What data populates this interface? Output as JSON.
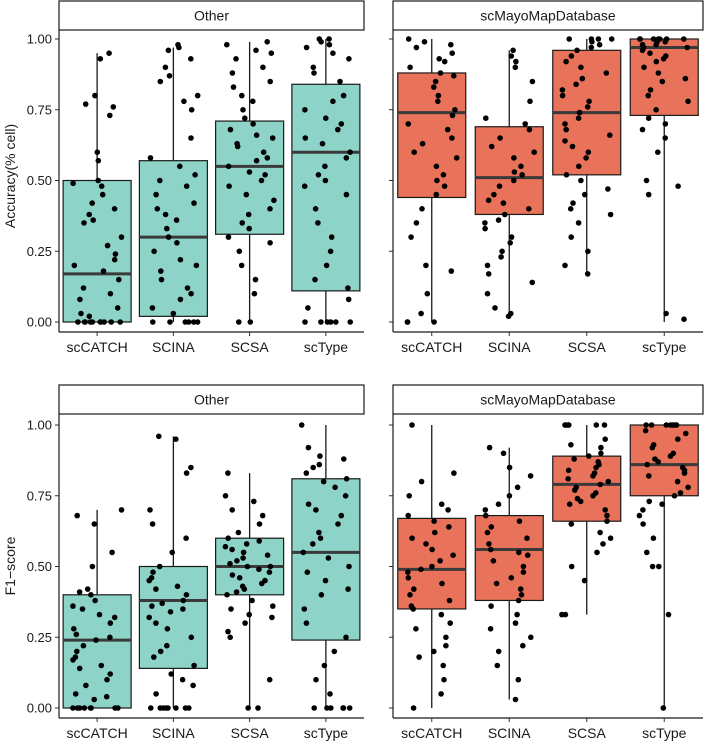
{
  "chart_data": [
    {
      "type": "box",
      "ylabel": "Accuracy(% cell)",
      "ylim": [
        0,
        1
      ],
      "yticks": [
        0,
        0.25,
        0.5,
        0.75,
        1
      ],
      "ytick_labels": [
        "0.00",
        "0.25",
        "0.50",
        "0.75",
        "1.00"
      ],
      "categories": [
        "scCATCH",
        "SCINA",
        "SCSA",
        "scType"
      ],
      "panels": [
        {
          "title": "Other",
          "fill": "#8dd3c7",
          "boxes": [
            {
              "category": "scCATCH",
              "min": 0.0,
              "q1": 0.0,
              "median": 0.17,
              "q3": 0.5,
              "max": 0.95,
              "points": [
                0.95,
                0.93,
                0.8,
                0.77,
                0.76,
                0.73,
                0.6,
                0.57,
                0.5,
                0.49,
                0.48,
                0.45,
                0.42,
                0.4,
                0.38,
                0.36,
                0.35,
                0.3,
                0.27,
                0.24,
                0.22,
                0.2,
                0.18,
                0.15,
                0.12,
                0.1,
                0.08,
                0.05,
                0.03,
                0.02,
                0.0,
                0.0,
                0.0,
                0.0,
                0.0,
                0.0,
                0.0,
                0.0,
                0.0,
                0.0
              ]
            },
            {
              "category": "SCINA",
              "min": 0.0,
              "q1": 0.02,
              "median": 0.3,
              "q3": 0.57,
              "max": 0.97,
              "points": [
                0.98,
                0.97,
                0.96,
                0.93,
                0.9,
                0.87,
                0.85,
                0.8,
                0.78,
                0.75,
                0.65,
                0.58,
                0.55,
                0.52,
                0.5,
                0.48,
                0.45,
                0.42,
                0.4,
                0.38,
                0.36,
                0.33,
                0.3,
                0.28,
                0.25,
                0.22,
                0.2,
                0.18,
                0.15,
                0.12,
                0.1,
                0.08,
                0.05,
                0.03,
                0.0,
                0.0,
                0.0,
                0.0,
                0.0,
                0.0
              ]
            },
            {
              "category": "SCSA",
              "min": 0.0,
              "q1": 0.31,
              "median": 0.55,
              "q3": 0.71,
              "max": 0.99,
              "points": [
                0.99,
                0.98,
                0.96,
                0.95,
                0.93,
                0.9,
                0.88,
                0.85,
                0.83,
                0.8,
                0.78,
                0.75,
                0.72,
                0.7,
                0.68,
                0.66,
                0.65,
                0.63,
                0.62,
                0.6,
                0.58,
                0.57,
                0.55,
                0.53,
                0.52,
                0.5,
                0.48,
                0.45,
                0.43,
                0.4,
                0.38,
                0.35,
                0.33,
                0.3,
                0.28,
                0.25,
                0.2,
                0.15,
                0.1,
                0.0,
                0.0
              ]
            },
            {
              "category": "scType",
              "min": 0.0,
              "q1": 0.11,
              "median": 0.6,
              "q3": 0.84,
              "max": 1.0,
              "points": [
                1.0,
                1.0,
                0.99,
                0.98,
                0.97,
                0.95,
                0.93,
                0.9,
                0.88,
                0.85,
                0.8,
                0.78,
                0.75,
                0.72,
                0.7,
                0.68,
                0.65,
                0.63,
                0.6,
                0.58,
                0.55,
                0.52,
                0.5,
                0.48,
                0.45,
                0.4,
                0.35,
                0.3,
                0.25,
                0.2,
                0.15,
                0.12,
                0.08,
                0.05,
                0.0,
                0.0,
                0.0,
                0.0,
                0.0,
                0.0
              ]
            }
          ]
        },
        {
          "title": "scMayoMapDatabase",
          "fill": "#e8735a",
          "boxes": [
            {
              "category": "scCATCH",
              "min": 0.0,
              "q1": 0.44,
              "median": 0.74,
              "q3": 0.88,
              "max": 1.0,
              "points": [
                1.0,
                0.99,
                0.98,
                0.97,
                0.95,
                0.93,
                0.92,
                0.9,
                0.88,
                0.87,
                0.85,
                0.83,
                0.8,
                0.78,
                0.75,
                0.73,
                0.7,
                0.68,
                0.65,
                0.63,
                0.6,
                0.58,
                0.55,
                0.52,
                0.5,
                0.48,
                0.45,
                0.4,
                0.35,
                0.3,
                0.2,
                0.18,
                0.1,
                0.03,
                0.0,
                0.0,
                0.0
              ]
            },
            {
              "category": "SCINA",
              "min": 0.03,
              "q1": 0.38,
              "median": 0.51,
              "q3": 0.69,
              "max": 0.96,
              "points": [
                0.96,
                0.94,
                0.92,
                0.9,
                0.85,
                0.78,
                0.72,
                0.7,
                0.68,
                0.65,
                0.62,
                0.6,
                0.58,
                0.55,
                0.53,
                0.52,
                0.5,
                0.48,
                0.45,
                0.43,
                0.42,
                0.4,
                0.38,
                0.36,
                0.35,
                0.33,
                0.3,
                0.28,
                0.25,
                0.23,
                0.2,
                0.17,
                0.14,
                0.1,
                0.05,
                0.03,
                0.02
              ]
            },
            {
              "category": "SCSA",
              "min": 0.17,
              "q1": 0.52,
              "median": 0.74,
              "q3": 0.96,
              "max": 1.0,
              "points": [
                1.0,
                1.0,
                1.0,
                1.0,
                0.99,
                0.98,
                0.97,
                0.96,
                0.94,
                0.92,
                0.9,
                0.88,
                0.86,
                0.84,
                0.82,
                0.8,
                0.78,
                0.76,
                0.74,
                0.72,
                0.7,
                0.68,
                0.66,
                0.64,
                0.62,
                0.6,
                0.58,
                0.55,
                0.52,
                0.5,
                0.47,
                0.45,
                0.42,
                0.4,
                0.38,
                0.35,
                0.3,
                0.25,
                0.2,
                0.17
              ]
            },
            {
              "category": "scType",
              "min": 0.0,
              "q1": 0.73,
              "median": 0.97,
              "q3": 1.0,
              "max": 1.0,
              "points": [
                1.0,
                1.0,
                1.0,
                1.0,
                1.0,
                1.0,
                1.0,
                0.99,
                0.99,
                0.98,
                0.98,
                0.97,
                0.97,
                0.96,
                0.95,
                0.94,
                0.93,
                0.92,
                0.9,
                0.88,
                0.86,
                0.85,
                0.82,
                0.8,
                0.78,
                0.75,
                0.72,
                0.7,
                0.68,
                0.65,
                0.6,
                0.5,
                0.48,
                0.45,
                0.03,
                0.01
              ]
            }
          ]
        }
      ]
    },
    {
      "type": "box",
      "ylabel": "F1−score",
      "ylim": [
        0,
        1
      ],
      "yticks": [
        0,
        0.25,
        0.5,
        0.75,
        1
      ],
      "ytick_labels": [
        "0.00",
        "0.25",
        "0.50",
        "0.75",
        "1.00"
      ],
      "categories": [
        "scCATCH",
        "SCINA",
        "SCSA",
        "scType"
      ],
      "panels": [
        {
          "title": "Other",
          "fill": "#8dd3c7",
          "boxes": [
            {
              "category": "scCATCH",
              "min": 0.0,
              "q1": 0.0,
              "median": 0.24,
              "q3": 0.4,
              "max": 0.7,
              "points": [
                0.7,
                0.68,
                0.65,
                0.55,
                0.5,
                0.42,
                0.41,
                0.4,
                0.38,
                0.36,
                0.35,
                0.33,
                0.32,
                0.3,
                0.28,
                0.26,
                0.25,
                0.24,
                0.22,
                0.2,
                0.18,
                0.17,
                0.15,
                0.14,
                0.12,
                0.1,
                0.08,
                0.05,
                0.04,
                0.03,
                0.0,
                0.0,
                0.0,
                0.0,
                0.0,
                0.0,
                0.0,
                0.0
              ]
            },
            {
              "category": "SCINA",
              "min": 0.0,
              "q1": 0.14,
              "median": 0.38,
              "q3": 0.5,
              "max": 0.96,
              "points": [
                0.96,
                0.95,
                0.85,
                0.83,
                0.7,
                0.65,
                0.6,
                0.55,
                0.5,
                0.48,
                0.46,
                0.45,
                0.43,
                0.42,
                0.4,
                0.38,
                0.37,
                0.36,
                0.35,
                0.34,
                0.32,
                0.3,
                0.28,
                0.25,
                0.22,
                0.2,
                0.18,
                0.15,
                0.12,
                0.1,
                0.08,
                0.05,
                0.0,
                0.0,
                0.0,
                0.0,
                0.0,
                0.0,
                0.0,
                0.0
              ]
            },
            {
              "category": "SCSA",
              "min": 0.0,
              "q1": 0.4,
              "median": 0.5,
              "q3": 0.6,
              "max": 0.83,
              "points": [
                0.83,
                0.75,
                0.73,
                0.7,
                0.68,
                0.65,
                0.62,
                0.6,
                0.59,
                0.58,
                0.57,
                0.56,
                0.55,
                0.54,
                0.53,
                0.52,
                0.51,
                0.5,
                0.5,
                0.49,
                0.48,
                0.47,
                0.46,
                0.45,
                0.44,
                0.43,
                0.42,
                0.41,
                0.4,
                0.38,
                0.36,
                0.35,
                0.33,
                0.32,
                0.3,
                0.27,
                0.25,
                0.1,
                0.0,
                0.0
              ]
            },
            {
              "category": "scType",
              "min": 0.0,
              "q1": 0.24,
              "median": 0.55,
              "q3": 0.81,
              "max": 1.0,
              "points": [
                1.0,
                0.92,
                0.89,
                0.88,
                0.86,
                0.85,
                0.83,
                0.81,
                0.8,
                0.78,
                0.75,
                0.72,
                0.7,
                0.68,
                0.65,
                0.62,
                0.6,
                0.58,
                0.55,
                0.53,
                0.5,
                0.48,
                0.45,
                0.42,
                0.4,
                0.35,
                0.3,
                0.25,
                0.2,
                0.15,
                0.1,
                0.05,
                0.0,
                0.0,
                0.0,
                0.0,
                0.0,
                0.0
              ]
            }
          ]
        },
        {
          "title": "scMayoMapDatabase",
          "fill": "#e8735a",
          "boxes": [
            {
              "category": "scCATCH",
              "min": 0.0,
              "q1": 0.35,
              "median": 0.49,
              "q3": 0.67,
              "max": 1.0,
              "points": [
                1.0,
                0.83,
                0.8,
                0.75,
                0.72,
                0.7,
                0.68,
                0.66,
                0.64,
                0.62,
                0.6,
                0.58,
                0.56,
                0.54,
                0.52,
                0.5,
                0.49,
                0.48,
                0.46,
                0.44,
                0.42,
                0.4,
                0.38,
                0.36,
                0.35,
                0.33,
                0.3,
                0.28,
                0.25,
                0.22,
                0.2,
                0.18,
                0.15,
                0.1,
                0.05,
                0.0
              ]
            },
            {
              "category": "SCINA",
              "min": 0.03,
              "q1": 0.38,
              "median": 0.56,
              "q3": 0.68,
              "max": 0.92,
              "points": [
                0.92,
                0.9,
                0.85,
                0.82,
                0.78,
                0.75,
                0.72,
                0.7,
                0.68,
                0.66,
                0.64,
                0.62,
                0.6,
                0.58,
                0.56,
                0.55,
                0.54,
                0.52,
                0.5,
                0.48,
                0.46,
                0.44,
                0.42,
                0.4,
                0.38,
                0.36,
                0.33,
                0.3,
                0.28,
                0.25,
                0.22,
                0.2,
                0.15,
                0.1,
                0.03
              ]
            },
            {
              "category": "SCSA",
              "min": 0.33,
              "q1": 0.66,
              "median": 0.79,
              "q3": 0.89,
              "max": 1.0,
              "points": [
                1.0,
                1.0,
                1.0,
                1.0,
                1.0,
                1.0,
                0.95,
                0.93,
                0.92,
                0.9,
                0.89,
                0.88,
                0.87,
                0.86,
                0.85,
                0.84,
                0.83,
                0.82,
                0.81,
                0.8,
                0.79,
                0.78,
                0.77,
                0.76,
                0.75,
                0.74,
                0.73,
                0.72,
                0.7,
                0.68,
                0.66,
                0.65,
                0.62,
                0.6,
                0.58,
                0.55,
                0.5,
                0.45,
                0.33,
                0.33
              ]
            },
            {
              "category": "scType",
              "min": 0.0,
              "q1": 0.75,
              "median": 0.86,
              "q3": 1.0,
              "max": 1.0,
              "points": [
                1.0,
                1.0,
                1.0,
                1.0,
                1.0,
                1.0,
                1.0,
                1.0,
                0.98,
                0.97,
                0.95,
                0.93,
                0.92,
                0.9,
                0.89,
                0.88,
                0.87,
                0.86,
                0.85,
                0.84,
                0.83,
                0.82,
                0.8,
                0.78,
                0.76,
                0.75,
                0.73,
                0.72,
                0.7,
                0.68,
                0.65,
                0.6,
                0.55,
                0.5,
                0.5,
                0.33,
                0.0
              ]
            }
          ]
        }
      ]
    }
  ]
}
